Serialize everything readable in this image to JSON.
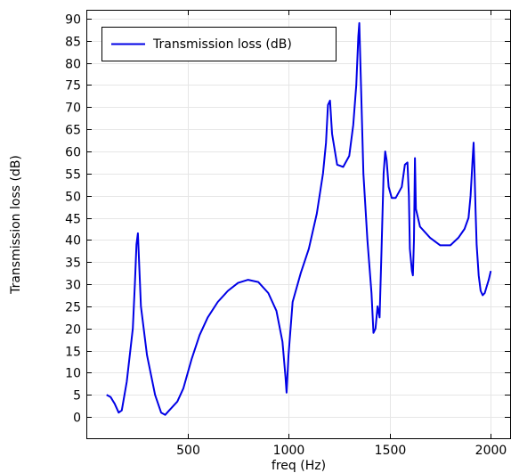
{
  "chart_data": {
    "type": "line",
    "title": "",
    "xlabel": "freq (Hz)",
    "ylabel": "Transmission loss (dB)",
    "xlim": [
      0,
      2100
    ],
    "ylim": [
      -5,
      92
    ],
    "xticks": [
      500,
      1000,
      1500,
      2000
    ],
    "yticks": [
      0,
      5,
      10,
      15,
      20,
      25,
      30,
      35,
      40,
      45,
      50,
      55,
      60,
      65,
      70,
      75,
      80,
      85,
      90
    ],
    "grid": true,
    "legend": {
      "position": "top-left",
      "entries": [
        "Transmission loss (dB)"
      ]
    },
    "series": [
      {
        "name": "Transmission loss (dB)",
        "color": "#0000e6",
        "x": [
          100,
          120,
          140,
          160,
          175,
          200,
          230,
          240,
          248,
          255,
          270,
          300,
          340,
          370,
          390,
          410,
          430,
          450,
          480,
          520,
          560,
          600,
          650,
          700,
          750,
          800,
          850,
          900,
          940,
          970,
          985,
          990,
          1000,
          1020,
          1060,
          1100,
          1140,
          1170,
          1185,
          1195,
          1205,
          1215,
          1240,
          1270,
          1300,
          1320,
          1335,
          1345,
          1350,
          1358,
          1370,
          1390,
          1410,
          1420,
          1430,
          1440,
          1450,
          1460,
          1470,
          1478,
          1485,
          1495,
          1510,
          1530,
          1560,
          1575,
          1588,
          1595,
          1600,
          1610,
          1615,
          1620,
          1625,
          1630,
          1650,
          1700,
          1750,
          1800,
          1840,
          1870,
          1890,
          1900,
          1910,
          1915,
          1920,
          1925,
          1930,
          1940,
          1950,
          1960,
          1970,
          1980,
          1990,
          2000
        ],
        "y": [
          5,
          4.5,
          3,
          1,
          1.5,
          8,
          20,
          30,
          39,
          41.5,
          25,
          14,
          5,
          1,
          0.5,
          1.5,
          2.5,
          3.5,
          6.5,
          13,
          18.5,
          22.5,
          26,
          28.5,
          30.3,
          31,
          30.5,
          28,
          24,
          17,
          9,
          5.5,
          14,
          26,
          32.5,
          38,
          46,
          55,
          62,
          70.5,
          71.5,
          64,
          57,
          56.5,
          59,
          66,
          75,
          86,
          89,
          75,
          55,
          40,
          28,
          19,
          20,
          25,
          22.5,
          38,
          55,
          60,
          58,
          52,
          49.5,
          49.5,
          52,
          57,
          57.5,
          50,
          38,
          33,
          32,
          40,
          58.5,
          47,
          43,
          40.5,
          38.8,
          38.8,
          40.5,
          42.5,
          45,
          50,
          58,
          62,
          55,
          46,
          39,
          32,
          28.5,
          27.5,
          28,
          29.5,
          31,
          33
        ]
      }
    ]
  }
}
